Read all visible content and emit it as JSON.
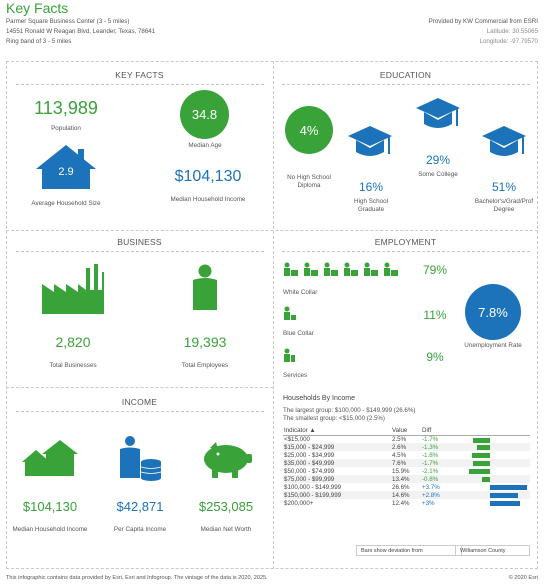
{
  "header": {
    "title": "Key Facts",
    "location_name": "Parmer Square Business Center (3 - 5 miles)",
    "address": "14551 Ronald W Reagan Blvd, Leander, Texas, 78641",
    "ring": "Ring band of 3 - 5 miles",
    "provided_by": "Provided by KW Commercial from ESRI",
    "latitude": "Latitude: 30.55065",
    "longitude": "Longitude: -97.79570"
  },
  "key_facts": {
    "title": "KEY FACTS",
    "population_value": "113,989",
    "population_label": "Population",
    "median_age_value": "34.8",
    "median_age_label": "Median Age",
    "household_size_value": "2.9",
    "household_size_label": "Average Household Size",
    "median_income_value": "$104,130",
    "median_income_label": "Median Household Income"
  },
  "education": {
    "title": "EDUCATION",
    "no_hs_value": "4%",
    "no_hs_label": "No High School Diploma",
    "hs_value": "16%",
    "hs_label": "High School Graduate",
    "some_college_value": "29%",
    "some_college_label": "Some College",
    "bachelors_value": "51%",
    "bachelors_label": "Bachelor's/Grad/Prof Degree"
  },
  "business": {
    "title": "BUSINESS",
    "businesses_value": "2,820",
    "businesses_label": "Total Businesses",
    "employees_value": "19,393",
    "employees_label": "Total Employees"
  },
  "employment": {
    "title": "EMPLOYMENT",
    "white_collar_value": "79%",
    "white_collar_label": "White Collar",
    "blue_collar_value": "11%",
    "blue_collar_label": "Blue Collar",
    "services_value": "9%",
    "services_label": "Services",
    "unemployment_value": "7.8%",
    "unemployment_label": "Unemployment Rate"
  },
  "income": {
    "title": "INCOME",
    "median_hh_value": "$104,130",
    "median_hh_label": "Median Household Income",
    "per_capita_value": "$42,871",
    "per_capita_label": "Per Capita Income",
    "net_worth_value": "$253,085",
    "net_worth_label": "Median Net Worth"
  },
  "households": {
    "title": "Households By Income",
    "largest": "The largest group: $100,000 - $149,999 (26.6%)",
    "smallest": "The smallest group: <$15,000 (2.5%)",
    "col_indicator": "Indicator ▲",
    "col_value": "Value",
    "col_diff": "Diff",
    "rows": [
      {
        "indicator": "<$15,000",
        "value": "2.5%",
        "diff": "-1.7%",
        "d": -1.7
      },
      {
        "indicator": "$15,000 - $24,999",
        "value": "2.6%",
        "diff": "-1.3%",
        "d": -1.3
      },
      {
        "indicator": "$25,000 - $34,999",
        "value": "4.5%",
        "diff": "-1.8%",
        "d": -1.8
      },
      {
        "indicator": "$35,000 - $49,999",
        "value": "7.6%",
        "diff": "-1.7%",
        "d": -1.7
      },
      {
        "indicator": "$50,000 - $74,999",
        "value": "15.9%",
        "diff": "-2.1%",
        "d": -2.1
      },
      {
        "indicator": "$75,000 - $99,999",
        "value": "13.4%",
        "diff": "-0.8%",
        "d": -0.8
      },
      {
        "indicator": "$100,000 - $149,999",
        "value": "26.6%",
        "diff": "+3.7%",
        "d": 3.7
      },
      {
        "indicator": "$150,000 - $199,999",
        "value": "14.6%",
        "diff": "+2.8%",
        "d": 2.8
      },
      {
        "indicator": "$200,000+",
        "value": "12.4%",
        "diff": "+3%",
        "d": 3.0
      }
    ],
    "legend_label": "Bars show deviation from",
    "legend_region": "Williamson County"
  },
  "colors": {
    "green": "#39a33a",
    "blue": "#1c73b9"
  },
  "footer": {
    "note": "This infographic contains data provided by Esri, Esri and Infogroup. The vintage of the data is 2020, 2025.",
    "copyright": "© 2020 Esri"
  }
}
